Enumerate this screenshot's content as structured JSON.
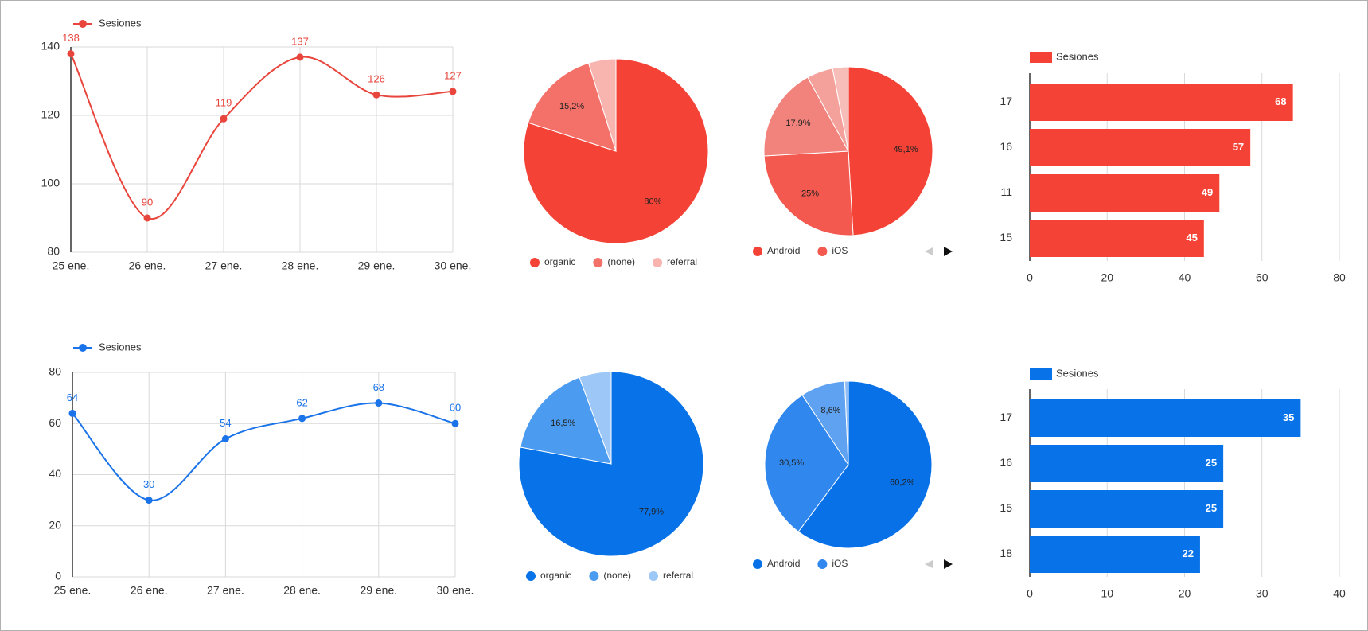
{
  "chart_data": [
    {
      "type": "line",
      "categories": [
        "25 ene.",
        "26 ene.",
        "27 ene.",
        "28 ene.",
        "29 ene.",
        "30 ene."
      ],
      "series": [
        {
          "name": "Sesiones",
          "color": "#e8453c",
          "values": [
            138,
            90,
            119,
            137,
            126,
            127
          ]
        }
      ],
      "ylim": [
        80,
        140
      ],
      "yticks": [
        80,
        100,
        120,
        140
      ],
      "grid": true
    },
    {
      "type": "pie",
      "categories": [
        "organic",
        "(none)",
        "referral"
      ],
      "values": [
        80,
        15.2,
        4.8
      ],
      "value_labels": [
        "80%",
        "15,2%",
        null
      ],
      "colors": [
        "#f44336",
        "#f4716a",
        "#f8b4af"
      ]
    },
    {
      "type": "pie",
      "categories": [
        "Android",
        "iOS",
        null,
        null,
        null
      ],
      "values": [
        49.1,
        25,
        17.9,
        5,
        3
      ],
      "value_labels": [
        "49,1%",
        "25%",
        "17,9%",
        null,
        null
      ],
      "colors": [
        "#f44336",
        "#f3594f",
        "#f2837c",
        "#f4a19c",
        "#f7beb9"
      ]
    },
    {
      "type": "hbar",
      "categories": [
        "17",
        "16",
        "11",
        "15"
      ],
      "series": [
        {
          "name": "Sesiones",
          "color": "#f44336",
          "values": [
            68,
            57,
            49,
            45
          ]
        }
      ],
      "xlim": [
        0,
        80
      ],
      "xticks": [
        0,
        20,
        40,
        60,
        80
      ],
      "grid": true
    },
    {
      "type": "line",
      "categories": [
        "25 ene.",
        "26 ene.",
        "27 ene.",
        "28 ene.",
        "29 ene.",
        "30 ene."
      ],
      "series": [
        {
          "name": "Sesiones",
          "color": "#1a73e8",
          "values": [
            64,
            30,
            54,
            62,
            68,
            60
          ]
        }
      ],
      "ylim": [
        0,
        80
      ],
      "yticks": [
        0,
        20,
        40,
        60,
        80
      ],
      "grid": true
    },
    {
      "type": "pie",
      "categories": [
        "organic",
        "(none)",
        "referral"
      ],
      "values": [
        77.9,
        16.5,
        5.6
      ],
      "value_labels": [
        "77,9%",
        "16,5%",
        null
      ],
      "colors": [
        "#0873e8",
        "#4b9cf0",
        "#9dc7f7"
      ]
    },
    {
      "type": "pie",
      "categories": [
        "Android",
        "iOS",
        null,
        null
      ],
      "values": [
        60.2,
        30.5,
        8.6,
        0.7
      ],
      "value_labels": [
        "60,2%",
        "30,5%",
        "8,6%",
        null
      ],
      "colors": [
        "#0871e8",
        "#3087ee",
        "#5fa2f1",
        "#8fbdf5"
      ]
    },
    {
      "type": "hbar",
      "categories": [
        "17",
        "16",
        "15",
        "18"
      ],
      "series": [
        {
          "name": "Sesiones",
          "color": "#0873e8",
          "values": [
            35,
            25,
            25,
            22
          ]
        }
      ],
      "xlim": [
        0,
        40
      ],
      "xticks": [
        0,
        10,
        20,
        30,
        40
      ],
      "grid": true
    }
  ]
}
